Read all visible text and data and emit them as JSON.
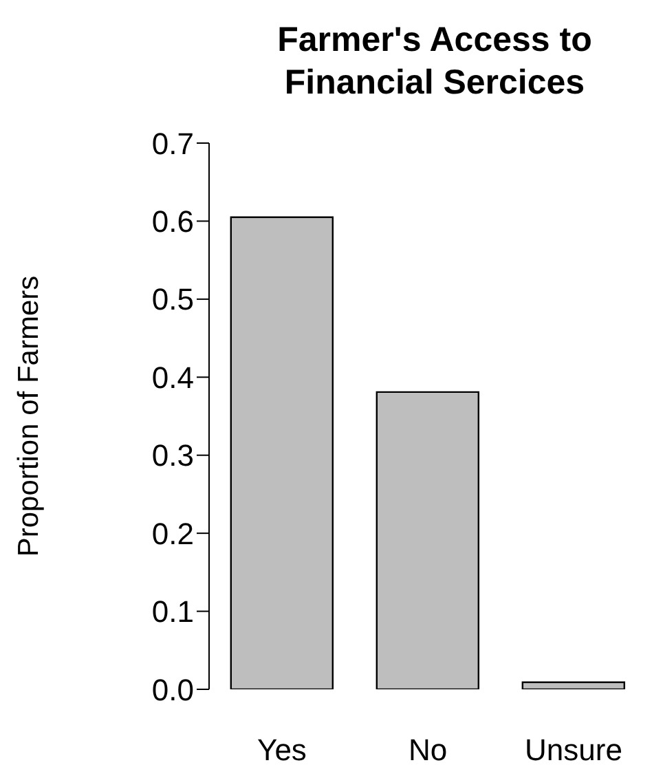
{
  "chart_data": {
    "type": "bar",
    "title": "Farmer's Access to\nFinancial Sercices",
    "ylabel": "Proportion of Farmers",
    "categories": [
      "Yes",
      "No",
      "Unsure"
    ],
    "values": [
      0.605,
      0.381,
      0.009
    ],
    "color": "#bebebe",
    "ylim": [
      0,
      0.7
    ],
    "yticks": [
      {
        "value": 0,
        "label": "0.0"
      },
      0.1,
      0.2,
      0.3,
      0.4,
      0.5,
      0.6,
      0.7
    ]
  }
}
